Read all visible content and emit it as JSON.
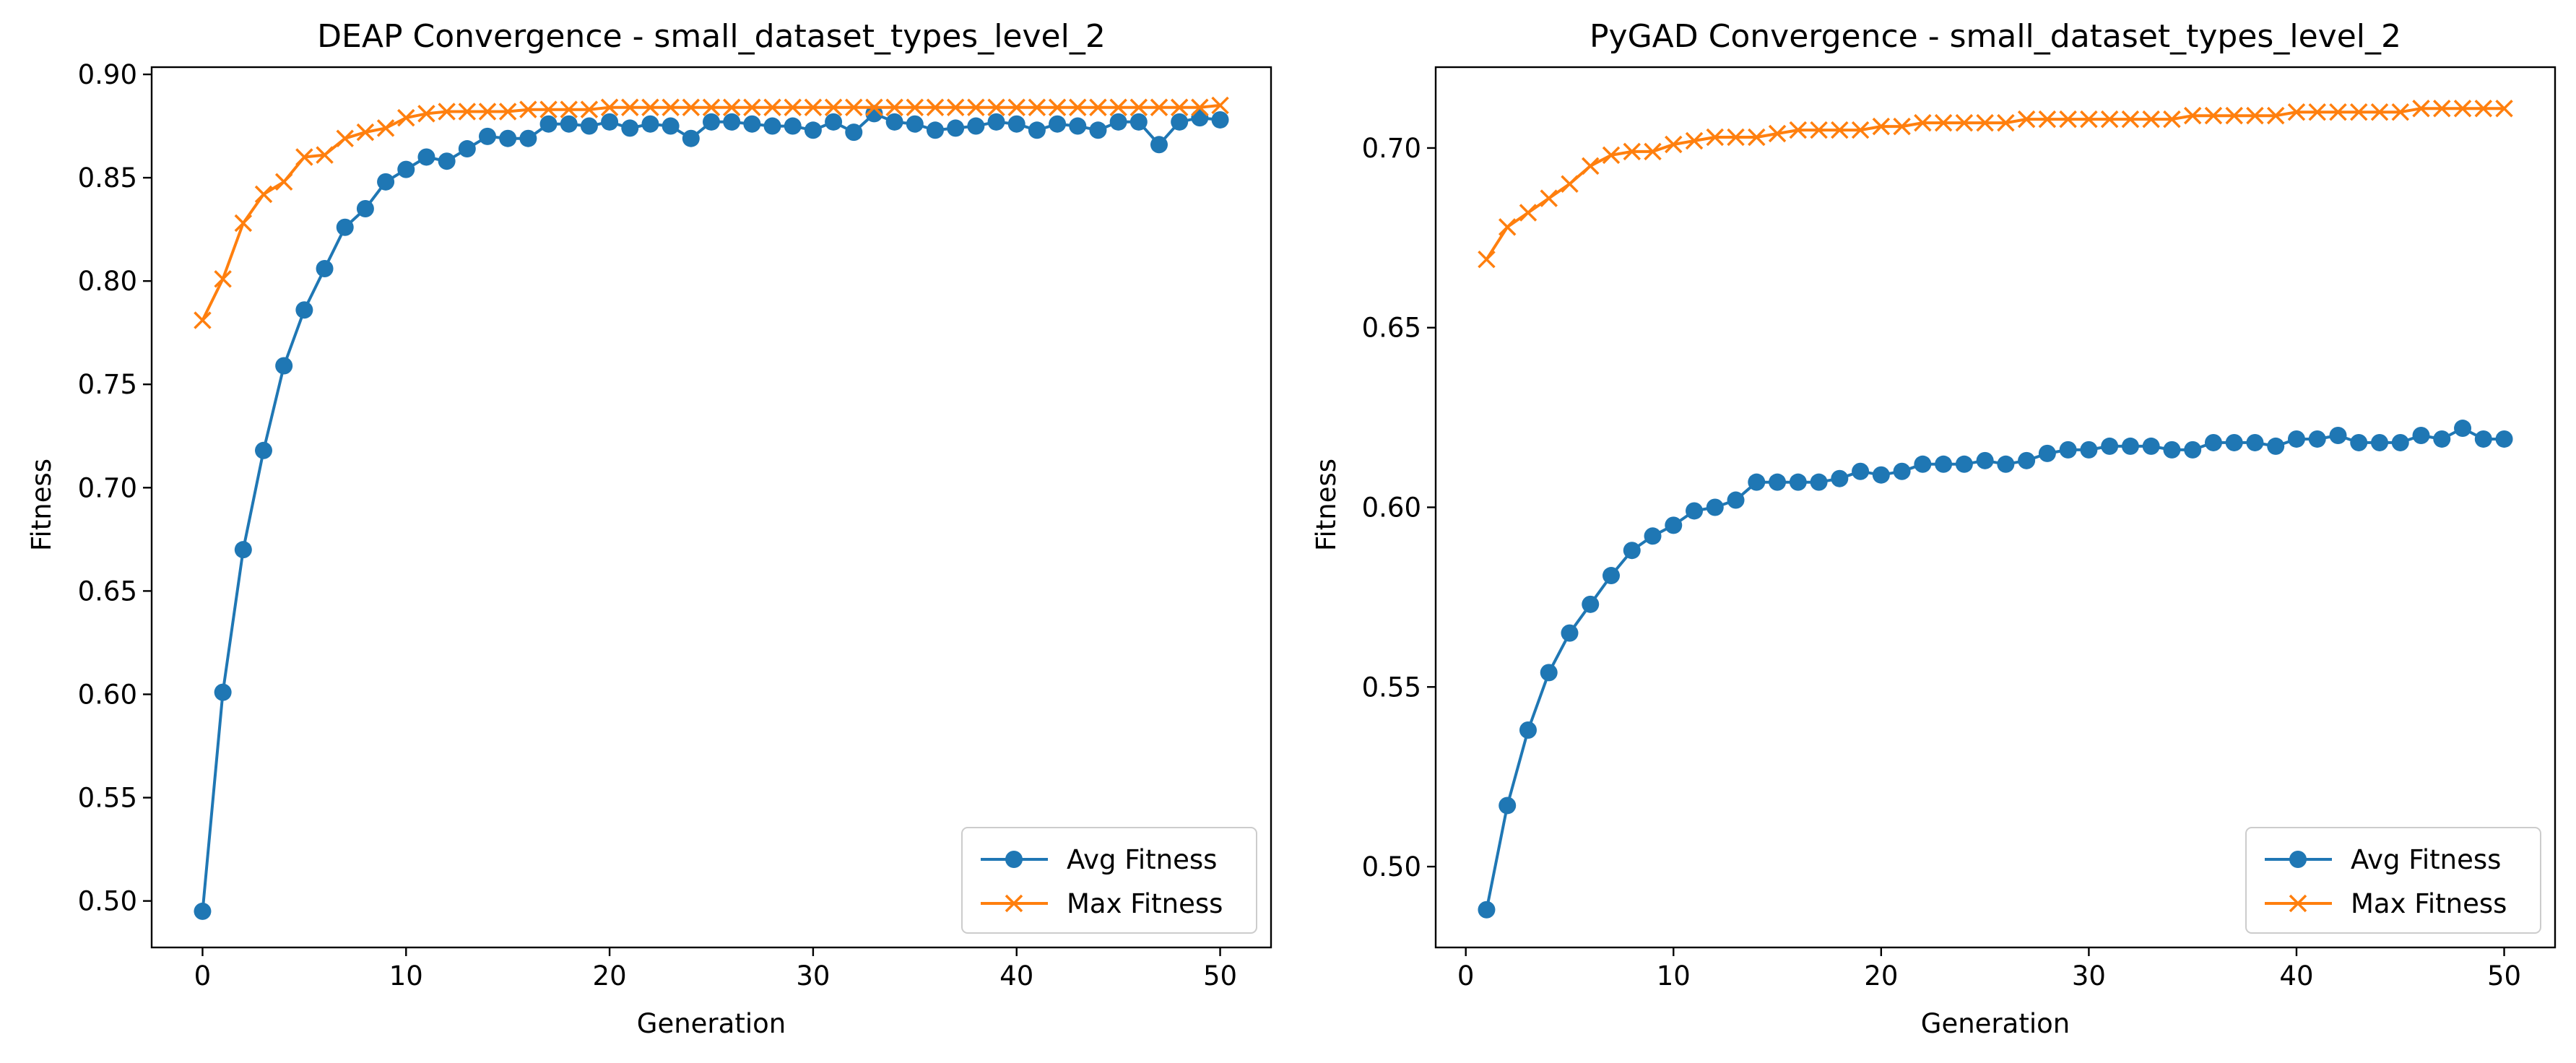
{
  "chart_data": [
    {
      "type": "line",
      "title": "DEAP Convergence - small_dataset_types_level_2",
      "xlabel": "Generation",
      "ylabel": "Fitness",
      "xlim": [
        -2.5,
        52.5
      ],
      "ylim": [
        0.4775,
        0.9035
      ],
      "xticks": [
        0,
        10,
        20,
        30,
        40,
        50
      ],
      "yticks": [
        0.5,
        0.55,
        0.6,
        0.65,
        0.7,
        0.75,
        0.8,
        0.85,
        0.9
      ],
      "ytick_labels": [
        "0.50",
        "0.55",
        "0.60",
        "0.65",
        "0.70",
        "0.75",
        "0.80",
        "0.85",
        "0.90"
      ],
      "grid": false,
      "legend_position": "bottom-right",
      "series": [
        {
          "name": "Avg Fitness",
          "color": "#1f77b4",
          "marker": "circle",
          "x": [
            0,
            1,
            2,
            3,
            4,
            5,
            6,
            7,
            8,
            9,
            10,
            11,
            12,
            13,
            14,
            15,
            16,
            17,
            18,
            19,
            20,
            21,
            22,
            23,
            24,
            25,
            26,
            27,
            28,
            29,
            30,
            31,
            32,
            33,
            34,
            35,
            36,
            37,
            38,
            39,
            40,
            41,
            42,
            43,
            44,
            45,
            46,
            47,
            48,
            49,
            50
          ],
          "y": [
            0.495,
            0.601,
            0.67,
            0.718,
            0.759,
            0.786,
            0.806,
            0.826,
            0.835,
            0.848,
            0.854,
            0.86,
            0.858,
            0.864,
            0.87,
            0.869,
            0.869,
            0.876,
            0.876,
            0.875,
            0.877,
            0.874,
            0.876,
            0.875,
            0.869,
            0.877,
            0.877,
            0.876,
            0.875,
            0.875,
            0.873,
            0.877,
            0.872,
            0.881,
            0.877,
            0.876,
            0.873,
            0.874,
            0.875,
            0.877,
            0.876,
            0.873,
            0.876,
            0.875,
            0.873,
            0.877,
            0.877,
            0.866,
            0.877,
            0.879,
            0.878
          ]
        },
        {
          "name": "Max Fitness",
          "color": "#ff7f0e",
          "marker": "x",
          "x": [
            0,
            1,
            2,
            3,
            4,
            5,
            6,
            7,
            8,
            9,
            10,
            11,
            12,
            13,
            14,
            15,
            16,
            17,
            18,
            19,
            20,
            21,
            22,
            23,
            24,
            25,
            26,
            27,
            28,
            29,
            30,
            31,
            32,
            33,
            34,
            35,
            36,
            37,
            38,
            39,
            40,
            41,
            42,
            43,
            44,
            45,
            46,
            47,
            48,
            49,
            50
          ],
          "y": [
            0.781,
            0.801,
            0.828,
            0.842,
            0.848,
            0.86,
            0.861,
            0.869,
            0.872,
            0.874,
            0.879,
            0.881,
            0.882,
            0.882,
            0.882,
            0.882,
            0.883,
            0.883,
            0.883,
            0.883,
            0.884,
            0.884,
            0.884,
            0.884,
            0.884,
            0.884,
            0.884,
            0.884,
            0.884,
            0.884,
            0.884,
            0.884,
            0.884,
            0.884,
            0.884,
            0.884,
            0.884,
            0.884,
            0.884,
            0.884,
            0.884,
            0.884,
            0.884,
            0.884,
            0.884,
            0.884,
            0.884,
            0.884,
            0.884,
            0.884,
            0.885
          ]
        }
      ]
    },
    {
      "type": "line",
      "title": "PyGAD Convergence - small_dataset_types_level_2",
      "xlabel": "Generation",
      "ylabel": "Fitness",
      "xlim": [
        -1.45,
        52.45
      ],
      "ylim": [
        0.4775,
        0.7225
      ],
      "xticks": [
        0,
        10,
        20,
        30,
        40,
        50
      ],
      "yticks": [
        0.5,
        0.55,
        0.6,
        0.65,
        0.7
      ],
      "ytick_labels": [
        "0.50",
        "0.55",
        "0.60",
        "0.65",
        "0.70"
      ],
      "grid": false,
      "legend_position": "bottom-right",
      "series": [
        {
          "name": "Avg Fitness",
          "color": "#1f77b4",
          "marker": "circle",
          "x": [
            1,
            2,
            3,
            4,
            5,
            6,
            7,
            8,
            9,
            10,
            11,
            12,
            13,
            14,
            15,
            16,
            17,
            18,
            19,
            20,
            21,
            22,
            23,
            24,
            25,
            26,
            27,
            28,
            29,
            30,
            31,
            32,
            33,
            34,
            35,
            36,
            37,
            38,
            39,
            40,
            41,
            42,
            43,
            44,
            45,
            46,
            47,
            48,
            49,
            50
          ],
          "y": [
            0.488,
            0.517,
            0.538,
            0.554,
            0.565,
            0.573,
            0.581,
            0.588,
            0.592,
            0.595,
            0.599,
            0.6,
            0.602,
            0.607,
            0.607,
            0.607,
            0.607,
            0.608,
            0.61,
            0.609,
            0.61,
            0.612,
            0.612,
            0.612,
            0.613,
            0.612,
            0.613,
            0.615,
            0.616,
            0.616,
            0.617,
            0.617,
            0.617,
            0.616,
            0.616,
            0.618,
            0.618,
            0.618,
            0.617,
            0.619,
            0.619,
            0.62,
            0.618,
            0.618,
            0.618,
            0.62,
            0.619,
            0.622,
            0.619,
            0.619
          ]
        },
        {
          "name": "Max Fitness",
          "color": "#ff7f0e",
          "marker": "x",
          "x": [
            1,
            2,
            3,
            4,
            5,
            6,
            7,
            8,
            9,
            10,
            11,
            12,
            13,
            14,
            15,
            16,
            17,
            18,
            19,
            20,
            21,
            22,
            23,
            24,
            25,
            26,
            27,
            28,
            29,
            30,
            31,
            32,
            33,
            34,
            35,
            36,
            37,
            38,
            39,
            40,
            41,
            42,
            43,
            44,
            45,
            46,
            47,
            48,
            49,
            50
          ],
          "y": [
            0.669,
            0.678,
            0.682,
            0.686,
            0.69,
            0.695,
            0.698,
            0.699,
            0.699,
            0.701,
            0.702,
            0.703,
            0.703,
            0.703,
            0.704,
            0.705,
            0.705,
            0.705,
            0.705,
            0.706,
            0.706,
            0.707,
            0.707,
            0.707,
            0.707,
            0.707,
            0.708,
            0.708,
            0.708,
            0.708,
            0.708,
            0.708,
            0.708,
            0.708,
            0.709,
            0.709,
            0.709,
            0.709,
            0.709,
            0.71,
            0.71,
            0.71,
            0.71,
            0.71,
            0.71,
            0.711,
            0.711,
            0.711,
            0.711,
            0.711
          ]
        }
      ]
    }
  ]
}
